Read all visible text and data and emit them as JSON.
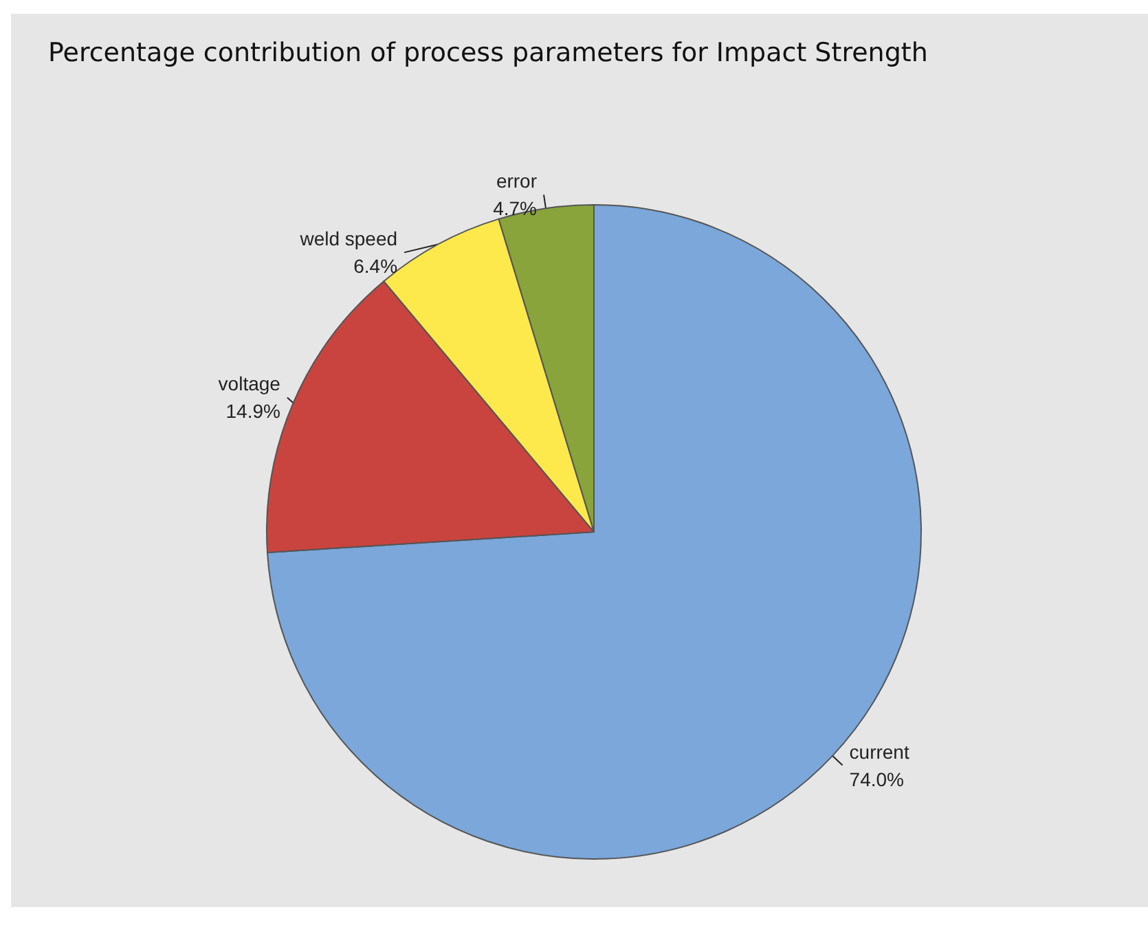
{
  "chart_data": {
    "type": "pie",
    "title": "Percentage contribution of process parameters for Impact Strength",
    "categories": [
      "current",
      "voltage",
      "weld speed",
      "error"
    ],
    "values": [
      74.0,
      14.9,
      6.4,
      4.7
    ],
    "colors": [
      "#7ba7da",
      "#c9443f",
      "#fde94b",
      "#89a43b"
    ],
    "value_labels": [
      "74.0%",
      "14.9%",
      "6.4%",
      "4.7%"
    ],
    "legend": false
  }
}
